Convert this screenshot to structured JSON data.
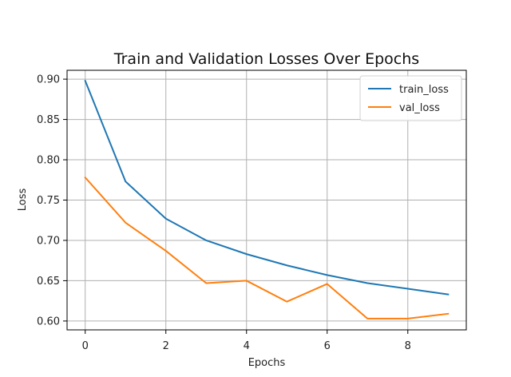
{
  "chart_data": {
    "type": "line",
    "title": "Train and Validation Losses Over Epochs",
    "xlabel": "Epochs",
    "ylabel": "Loss",
    "xlim": [
      -0.45,
      9.45
    ],
    "ylim": [
      0.589,
      0.911
    ],
    "xticks": [
      0,
      2,
      4,
      6,
      8
    ],
    "xtick_labels": [
      "0",
      "2",
      "4",
      "6",
      "8"
    ],
    "yticks": [
      0.6,
      0.65,
      0.7,
      0.75,
      0.8,
      0.85,
      0.9
    ],
    "ytick_labels": [
      "0.60",
      "0.65",
      "0.70",
      "0.75",
      "0.80",
      "0.85",
      "0.90"
    ],
    "grid": true,
    "legend_position": "top-right",
    "x": [
      0,
      1,
      2,
      3,
      4,
      5,
      6,
      7,
      8,
      9
    ],
    "series": [
      {
        "name": "train_loss",
        "color": "#1f77b4",
        "values": [
          0.898,
          0.773,
          0.727,
          0.7,
          0.683,
          0.669,
          0.657,
          0.647,
          0.64,
          0.633
        ]
      },
      {
        "name": "val_loss",
        "color": "#ff7f0e",
        "values": [
          0.778,
          0.722,
          0.687,
          0.647,
          0.65,
          0.624,
          0.646,
          0.603,
          0.603,
          0.609
        ]
      }
    ]
  }
}
